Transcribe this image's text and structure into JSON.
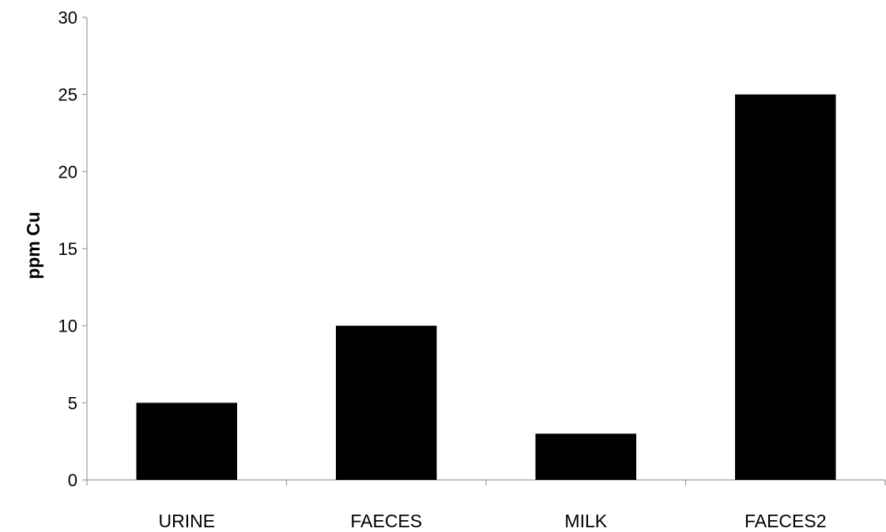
{
  "chart_data": {
    "type": "bar",
    "title": "",
    "xlabel": "",
    "ylabel": "ppm Cu",
    "categories": [
      "URINE",
      "FAECES",
      "MILK",
      "FAECES2"
    ],
    "values": [
      5,
      10,
      3,
      25
    ],
    "ylim": [
      0,
      30
    ],
    "yticks": [
      "0",
      "5",
      "10",
      "15",
      "20",
      "25",
      "30"
    ],
    "grid": false,
    "legend": "none",
    "bar_color": "#000000",
    "axis_color": "#9a9a9a"
  }
}
